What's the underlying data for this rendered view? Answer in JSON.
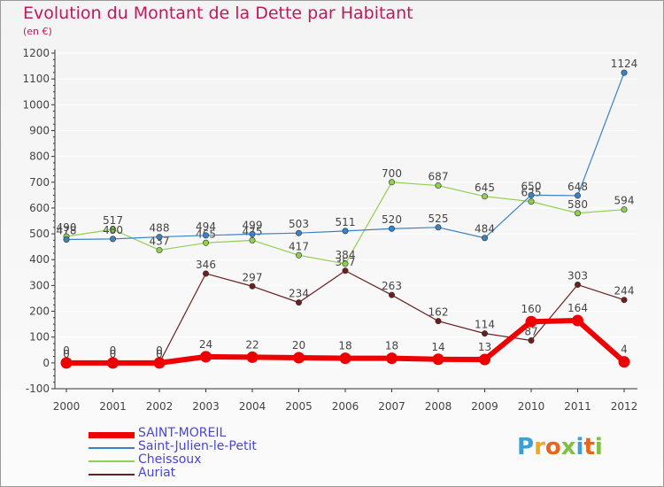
{
  "title": "Evolution du Montant de la Dette par Habitant",
  "subtitle": "(en €)",
  "logo": "Proxiti",
  "colors": {
    "title": "#c0185a",
    "axis": "#333333",
    "grid": "#ffffff",
    "label": "#444444",
    "legend_text": "#4a46d4",
    "logo_letters": [
      "#3aa0d8",
      "#f2a81b",
      "#e8661a",
      "#7fc241",
      "#3aa0d8",
      "#e8661a",
      "#7fc241"
    ]
  },
  "chart_data": {
    "type": "line",
    "categories": [
      "2000",
      "2001",
      "2002",
      "2003",
      "2004",
      "2005",
      "2006",
      "2007",
      "2008",
      "2009",
      "2010",
      "2011",
      "2012"
    ],
    "ylim": [
      -100,
      1200
    ],
    "yticks": [
      "-100",
      "0",
      "100",
      "200",
      "300",
      "400",
      "500",
      "600",
      "700",
      "800",
      "900",
      "1000",
      "1100",
      "1200"
    ],
    "grid": true,
    "legend_position": "bottom-left",
    "series": [
      {
        "name": "Auriat",
        "color": "#6b1f1f",
        "values": [
          0,
          0,
          0,
          346,
          297,
          234,
          357,
          263,
          162,
          114,
          87,
          303,
          244
        ],
        "labels": [
          "0",
          "0",
          "0",
          "346",
          "297",
          "234",
          "357",
          "263",
          "162",
          "114",
          "87",
          "303",
          "244"
        ]
      },
      {
        "name": "Cheissoux",
        "color": "#8fd14f",
        "values": [
          490,
          517,
          437,
          465,
          475,
          417,
          384,
          700,
          687,
          645,
          625,
          580,
          594
        ],
        "labels": [
          "490",
          "517",
          "437",
          "465",
          "475",
          "417",
          "384",
          "700",
          "687",
          "645",
          "625",
          "580",
          "594"
        ]
      },
      {
        "name": "Saint-Julien-le-Petit",
        "color": "#3b82c4",
        "values": [
          478,
          480,
          488,
          494,
          499,
          503,
          511,
          520,
          525,
          484,
          650,
          648,
          1124
        ],
        "labels": [
          "478",
          "480",
          "488",
          "494",
          "499",
          "503",
          "511",
          "520",
          "525",
          "484",
          "650",
          "648",
          "1124"
        ]
      },
      {
        "name": "SAINT-MOREIL",
        "color": "#ee0000",
        "values": [
          0,
          0,
          0,
          24,
          22,
          20,
          18,
          18,
          14,
          13,
          160,
          164,
          4
        ],
        "labels": [
          "0",
          "0",
          "0",
          "24",
          "22",
          "20",
          "18",
          "18",
          "14",
          "13",
          "160",
          "164",
          "4"
        ]
      }
    ],
    "legend": [
      "SAINT-MOREIL",
      "Saint-Julien-le-Petit",
      "Cheissoux",
      "Auriat"
    ]
  }
}
